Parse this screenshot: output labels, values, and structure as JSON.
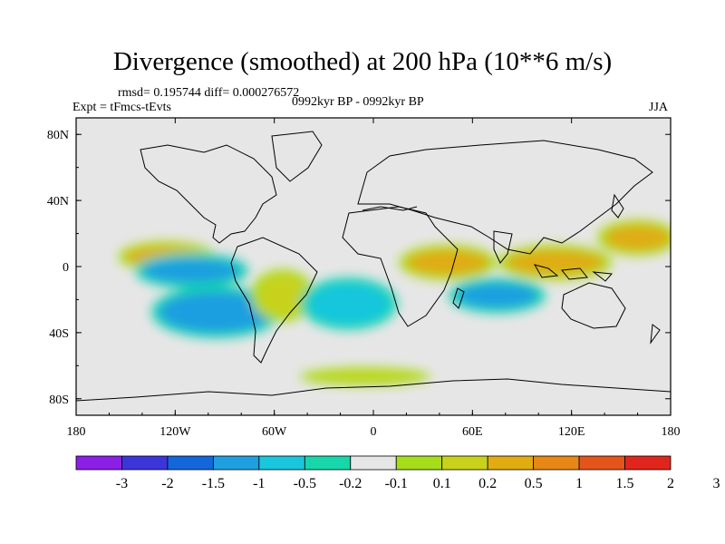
{
  "title": "Divergence (smoothed) at 200 hPa (10**6 m/s)",
  "stats": "rmsd= 0.195744 diff= 0.000276572",
  "experiment": "Expt = tFmcs-tEvts",
  "period": "0992kyr BP - 0992kyr BP",
  "season": "JJA",
  "colors": {
    "ocean_bg": "#e6e6e6",
    "palette": [
      "#8c1fe6",
      "#3c35d9",
      "#1466db",
      "#1f9fe0",
      "#19c6dc",
      "#17d7aa",
      "#e6e6e6",
      "#a6dc1c",
      "#c8d21a",
      "#e0ac12",
      "#e68716",
      "#e4551b",
      "#e0261c"
    ]
  },
  "chart_data": {
    "type": "heatmap",
    "title": "Divergence (smoothed) at 200 hPa (10**6 m/s)",
    "projection": "cylindrical equidistant",
    "x_axis": {
      "range": [
        -180,
        180
      ],
      "ticks": [
        "180",
        "120W",
        "60W",
        "0",
        "60E",
        "120E",
        "180"
      ]
    },
    "y_axis": {
      "range": [
        -90,
        90
      ],
      "ticks": [
        "80N",
        "40N",
        "0",
        "40S",
        "80S"
      ]
    },
    "colorbar": {
      "levels": [
        "-3",
        "-2",
        "-1.5",
        "-1",
        "-0.5",
        "-0.2",
        "-0.1",
        "0.1",
        "0.2",
        "0.5",
        "1",
        "1.5",
        "2",
        "3"
      ],
      "n_colors": 13
    },
    "features": [
      {
        "name": "eastern-pacific-itcz-convergence",
        "lon": [
          -150,
          -100
        ],
        "lat": [
          0,
          12
        ],
        "class": "orange"
      },
      {
        "name": "central-pacific-divergence",
        "lon": [
          -140,
          -80
        ],
        "lat": [
          -10,
          5
        ],
        "class": "blue"
      },
      {
        "name": "south-pacific-divergence",
        "lon": [
          -130,
          -60
        ],
        "lat": [
          -40,
          -15
        ],
        "class": "blue"
      },
      {
        "name": "south-american-convergence",
        "lon": [
          -70,
          -40
        ],
        "lat": [
          -30,
          -5
        ],
        "class": "yellow"
      },
      {
        "name": "atlantic-divergence",
        "lon": [
          -40,
          10
        ],
        "lat": [
          -35,
          -10
        ],
        "class": "cyan"
      },
      {
        "name": "african-convergence",
        "lon": [
          20,
          70
        ],
        "lat": [
          -5,
          10
        ],
        "class": "orange"
      },
      {
        "name": "indian-ocean-divergence",
        "lon": [
          50,
          100
        ],
        "lat": [
          -25,
          -10
        ],
        "class": "blue"
      },
      {
        "name": "maritime-continent-convergence",
        "lon": [
          80,
          140
        ],
        "lat": [
          -5,
          10
        ],
        "class": "orange"
      },
      {
        "name": "western-pacific-convergence",
        "lon": [
          140,
          180
        ],
        "lat": [
          10,
          25
        ],
        "class": "orange"
      },
      {
        "name": "southern-ocean-band",
        "lon": [
          -40,
          30
        ],
        "lat": [
          -68,
          -65
        ],
        "class": "yellow"
      }
    ]
  }
}
